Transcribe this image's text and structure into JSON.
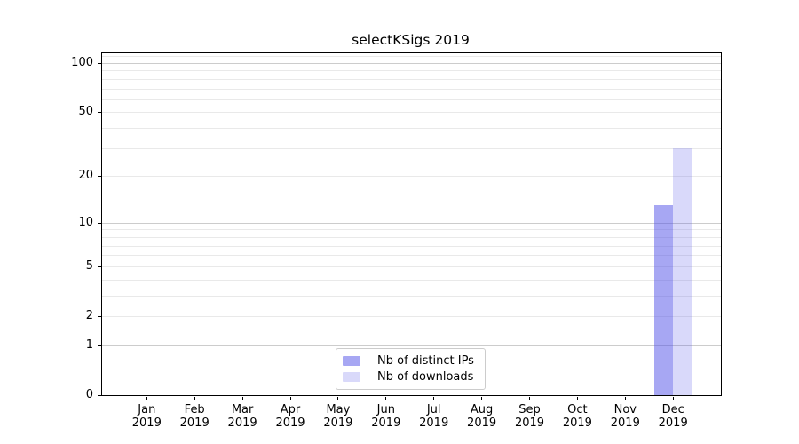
{
  "chart_data": {
    "type": "bar",
    "title": "selectKSigs 2019",
    "x_months": [
      "Jan",
      "Feb",
      "Mar",
      "Apr",
      "May",
      "Jun",
      "Jul",
      "Aug",
      "Sep",
      "Oct",
      "Nov",
      "Dec"
    ],
    "x_year": "2019",
    "series": [
      {
        "name": "Nb of distinct IPs",
        "color": "rgba(80,80,232,0.5)",
        "values": [
          0,
          0,
          0,
          0,
          0,
          0,
          0,
          0,
          0,
          0,
          0,
          13
        ]
      },
      {
        "name": "Nb of downloads",
        "color": "rgba(80,80,232,0.22)",
        "values": [
          0,
          0,
          0,
          0,
          0,
          0,
          0,
          0,
          0,
          0,
          0,
          30
        ]
      }
    ],
    "xlabel": "",
    "ylabel": "",
    "y_scale": "log1p",
    "ylim": [
      0,
      114.6
    ],
    "y_ticks": [
      0,
      1,
      2,
      5,
      10,
      20,
      50,
      100
    ],
    "y_major_gridlines": [
      1,
      10,
      100
    ],
    "y_minor_gridlines": [
      2,
      3,
      4,
      5,
      6,
      7,
      8,
      9,
      20,
      30,
      40,
      50,
      60,
      70,
      80,
      90,
      110
    ],
    "grid": "horizontal",
    "legend_position": "inside-bottom-center"
  },
  "colors": {
    "grid_major": "#cccccc",
    "grid_minor": "#e9e9e9",
    "axis": "#000000",
    "legend_border": "#cccccc",
    "text": "#000000",
    "background": "#ffffff"
  }
}
